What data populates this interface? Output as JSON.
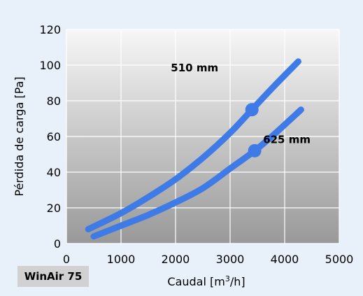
{
  "product_label": "WinAir 75",
  "colors": {
    "background": "#e8f1fa",
    "plot_top": "#f7f7f7",
    "plot_bottom": "#999999",
    "grid": "#ffffff",
    "series": "#3f7be6"
  },
  "chart_data": {
    "type": "line",
    "title": "",
    "xlabel_prefix": "Caudal [m",
    "xlabel_sup": "3",
    "xlabel_suffix": "/h]",
    "ylabel": "Pérdida de carga [Pa]",
    "xlim": [
      0,
      5000
    ],
    "ylim": [
      0,
      120
    ],
    "x_ticks": [
      0,
      1000,
      2000,
      3000,
      4000,
      5000
    ],
    "y_ticks": [
      0,
      20,
      40,
      60,
      80,
      100,
      120
    ],
    "grid": true,
    "series": [
      {
        "name": "510 mm",
        "x": [
          400,
          1000,
          1500,
          2000,
          2500,
          3000,
          3400,
          3800,
          4250
        ],
        "y": [
          8,
          17,
          26,
          36,
          48,
          62,
          75,
          88,
          102
        ],
        "marker": {
          "x": 3400,
          "y": 75
        }
      },
      {
        "name": "625 mm",
        "x": [
          500,
          1000,
          1500,
          2000,
          2500,
          3000,
          3450,
          3800,
          4300
        ],
        "y": [
          4,
          10,
          16,
          23,
          31,
          42,
          52,
          61,
          75
        ],
        "marker": {
          "x": 3450,
          "y": 52
        }
      }
    ]
  }
}
